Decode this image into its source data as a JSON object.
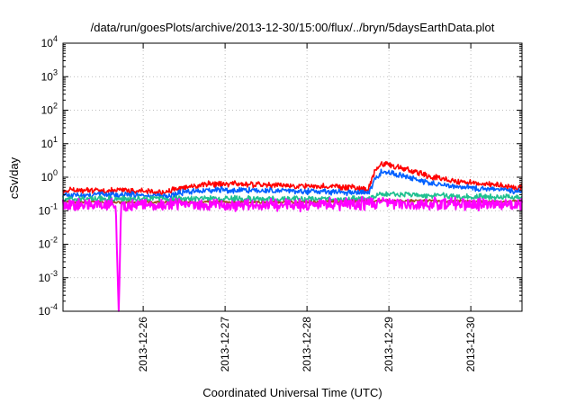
{
  "chart_data": {
    "type": "line",
    "title": "/data/run/goesPlots/archive/2013-12-30/15:00/flux/../bryn/5daysEarthData.plot",
    "xlabel": "Coordinated Universal Time (UTC)",
    "ylabel": "cSv/day",
    "x_range": [
      "2013-12-25T00:30",
      "2013-12-30T15:00"
    ],
    "x_ticks": [
      "2013-12-26",
      "2013-12-27",
      "2013-12-28",
      "2013-12-29",
      "2013-12-30"
    ],
    "y_scale": "log",
    "ylim": [
      0.0001,
      10000
    ],
    "y_ticks": [
      {
        "value": 0.0001,
        "base": "10",
        "exp": "-4"
      },
      {
        "value": 0.001,
        "base": "10",
        "exp": "-3"
      },
      {
        "value": 0.01,
        "base": "10",
        "exp": "-2"
      },
      {
        "value": 0.1,
        "base": "10",
        "exp": "-1"
      },
      {
        "value": 1,
        "base": "10",
        "exp": "0"
      },
      {
        "value": 10,
        "base": "10",
        "exp": "1"
      },
      {
        "value": 100,
        "base": "10",
        "exp": "2"
      },
      {
        "value": 1000,
        "base": "10",
        "exp": "3"
      },
      {
        "value": 10000,
        "base": "10",
        "exp": "4"
      }
    ],
    "grid": true,
    "series": [
      {
        "color": "#ff0000",
        "points": [
          [
            "2013-12-25T00:30",
            0.4
          ],
          [
            "2013-12-25T12:00",
            0.4
          ],
          [
            "2013-12-26T00:00",
            0.4
          ],
          [
            "2013-12-26T06:00",
            0.35
          ],
          [
            "2013-12-26T12:00",
            0.5
          ],
          [
            "2013-12-26T18:00",
            0.6
          ],
          [
            "2013-12-27T00:00",
            0.65
          ],
          [
            "2013-12-27T12:00",
            0.6
          ],
          [
            "2013-12-28T00:00",
            0.55
          ],
          [
            "2013-12-28T12:00",
            0.5
          ],
          [
            "2013-12-28T18:00",
            0.45
          ],
          [
            "2013-12-28T20:00",
            1.6
          ],
          [
            "2013-12-28T22:00",
            2.6
          ],
          [
            "2013-12-29T03:00",
            2.0
          ],
          [
            "2013-12-29T09:00",
            1.3
          ],
          [
            "2013-12-29T15:00",
            0.9
          ],
          [
            "2013-12-29T21:00",
            0.75
          ],
          [
            "2013-12-30T03:00",
            0.65
          ],
          [
            "2013-12-30T15:00",
            0.5
          ]
        ]
      },
      {
        "color": "#0060ff",
        "points": [
          [
            "2013-12-25T00:30",
            0.28
          ],
          [
            "2013-12-25T12:00",
            0.3
          ],
          [
            "2013-12-26T00:00",
            0.3
          ],
          [
            "2013-12-26T06:00",
            0.27
          ],
          [
            "2013-12-26T12:00",
            0.36
          ],
          [
            "2013-12-26T18:00",
            0.4
          ],
          [
            "2013-12-27T00:00",
            0.42
          ],
          [
            "2013-12-27T12:00",
            0.4
          ],
          [
            "2013-12-28T00:00",
            0.38
          ],
          [
            "2013-12-28T12:00",
            0.35
          ],
          [
            "2013-12-28T18:00",
            0.34
          ],
          [
            "2013-12-28T20:00",
            0.9
          ],
          [
            "2013-12-28T22:00",
            1.5
          ],
          [
            "2013-12-29T03:00",
            1.2
          ],
          [
            "2013-12-29T09:00",
            0.8
          ],
          [
            "2013-12-29T15:00",
            0.6
          ],
          [
            "2013-12-29T21:00",
            0.5
          ],
          [
            "2013-12-30T03:00",
            0.45
          ],
          [
            "2013-12-30T15:00",
            0.38
          ]
        ]
      },
      {
        "color": "#20c090",
        "points": [
          [
            "2013-12-25T00:30",
            0.22
          ],
          [
            "2013-12-26T00:00",
            0.22
          ],
          [
            "2013-12-27T00:00",
            0.23
          ],
          [
            "2013-12-28T00:00",
            0.22
          ],
          [
            "2013-12-28T18:00",
            0.22
          ],
          [
            "2013-12-28T22:00",
            0.33
          ],
          [
            "2013-12-29T06:00",
            0.3
          ],
          [
            "2013-12-29T18:00",
            0.27
          ],
          [
            "2013-12-30T15:00",
            0.25
          ]
        ]
      },
      {
        "color": "#a05020",
        "points": [
          [
            "2013-12-25T00:30",
            0.18
          ],
          [
            "2013-12-27T00:00",
            0.18
          ],
          [
            "2013-12-28T00:00",
            0.18
          ],
          [
            "2013-12-28T22:00",
            0.2
          ],
          [
            "2013-12-30T15:00",
            0.19
          ]
        ]
      },
      {
        "color": "#ff00ff",
        "points": [
          [
            "2013-12-25T00:30",
            0.15
          ],
          [
            "2013-12-25T16:00",
            0.15
          ],
          [
            "2013-12-25T16:50",
            0.0001
          ],
          [
            "2013-12-25T17:30",
            0.15
          ],
          [
            "2013-12-26T00:00",
            0.15
          ],
          [
            "2013-12-27T00:00",
            0.15
          ],
          [
            "2013-12-28T00:00",
            0.15
          ],
          [
            "2013-12-28T22:00",
            0.17
          ],
          [
            "2013-12-29T12:00",
            0.16
          ],
          [
            "2013-12-30T15:00",
            0.15
          ]
        ]
      }
    ]
  }
}
